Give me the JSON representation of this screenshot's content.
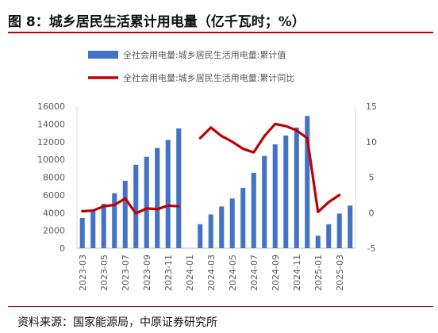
{
  "header": {
    "title": "图 8：城乡居民生活累计用电量（亿千瓦时；%）"
  },
  "footer": {
    "source": "资料来源：国家能源局，中原证券研究所"
  },
  "colors": {
    "bar": "#4472C4",
    "line": "#C00000",
    "rule": "#B0000F"
  },
  "chart_data": {
    "type": "bar",
    "title": "",
    "xlabel": "",
    "ylabel": "",
    "x": [
      "2023-03",
      "2023-04",
      "2023-05",
      "2023-06",
      "2023-07",
      "2023-08",
      "2023-09",
      "2023-10",
      "2023-11",
      "2023-12",
      "2024-01",
      "2024-02",
      "2024-03",
      "2024-04",
      "2024-05",
      "2024-06",
      "2024-07",
      "2024-08",
      "2024-09",
      "2024-10",
      "2024-11",
      "2024-12",
      "2025-01",
      "2025-02",
      "2025-03",
      "2025-04"
    ],
    "x_tick_labels": [
      "2023-03",
      "2023-05",
      "2023-07",
      "2023-09",
      "2023-11",
      "2024-01",
      "2024-03",
      "2024-05",
      "2024-07",
      "2024-09",
      "2024-11",
      "2025-01",
      "2025-03"
    ],
    "series": [
      {
        "name": "全社会用电量:城乡居民生活用电量:累计值",
        "type": "bar",
        "axis": "left",
        "values": [
          3400,
          4200,
          5000,
          6200,
          7600,
          9400,
          10300,
          11300,
          12200,
          13500,
          null,
          2700,
          3800,
          4700,
          5600,
          6800,
          8500,
          10400,
          11700,
          12700,
          13600,
          14900,
          1400,
          2700,
          3900,
          4800
        ]
      },
      {
        "name": "全社会用电量:城乡居民生活用电量:累计同比",
        "type": "line",
        "axis": "right",
        "values": [
          0.2,
          0.3,
          0.9,
          1.1,
          2.0,
          -0.1,
          0.6,
          0.5,
          1.0,
          0.9,
          null,
          10.5,
          12.0,
          10.8,
          10.0,
          9.0,
          8.5,
          10.8,
          12.5,
          12.2,
          11.6,
          10.5,
          0.1,
          1.5,
          2.5,
          null
        ]
      }
    ],
    "y_left": {
      "ylim": [
        0,
        16000
      ],
      "ticks": [
        0,
        2000,
        4000,
        6000,
        8000,
        10000,
        12000,
        14000,
        16000
      ]
    },
    "y_right": {
      "ylim": [
        -5,
        15
      ],
      "ticks": [
        -5,
        0,
        5,
        10,
        15
      ]
    },
    "legend_position": "top-center",
    "grid": false
  }
}
